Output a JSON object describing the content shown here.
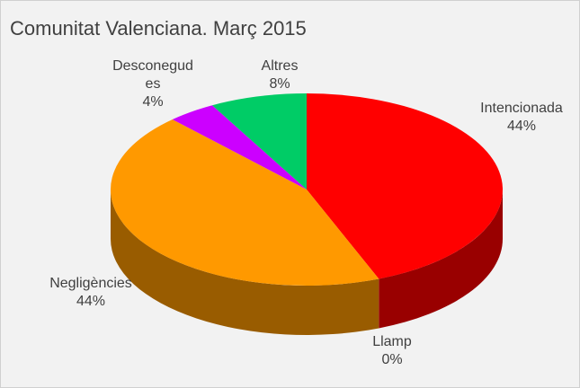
{
  "chart_data": {
    "type": "pie",
    "title": "Comunitat Valenciana. Març 2015",
    "categories": [
      "Intencionada",
      "Llamp",
      "Negligències",
      "Desconegudes",
      "Altres"
    ],
    "values": [
      44,
      0,
      44,
      4,
      8
    ],
    "value_labels": [
      "44%",
      "0%",
      "44%",
      "4%",
      "8%"
    ],
    "colors": [
      "#ff0000",
      "#4472c4",
      "#ff9900",
      "#cc00ff",
      "#00cc66"
    ]
  }
}
